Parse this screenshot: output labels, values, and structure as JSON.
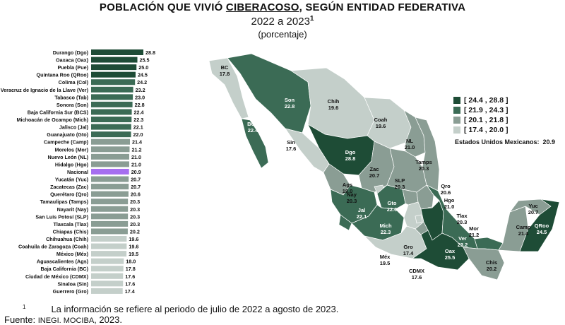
{
  "header": {
    "title_pre": "POBLACIÓN QUE VIVIÓ ",
    "title_underlined": "CIBERACOSO",
    "title_post": ", SEGÚN ENTIDAD FEDERATIVA",
    "subtitle": "2022 a 2023",
    "subtitle_mark": "1",
    "unit": "(porcentaje)"
  },
  "chart_data": {
    "type": "bar",
    "orientation": "horizontal",
    "title": "POBLACIÓN QUE VIVIÓ CIBERACOSO, SEGÚN ENTIDAD FEDERATIVA",
    "categories": [
      "Durango (Dgo)",
      "Oaxaca (Oax)",
      "Puebla (Pue)",
      "Quintana Roo (QRoo)",
      "Colima (Col)",
      "Veracruz de Ignacio de la Llave (Ver)",
      "Tabasco (Tab)",
      "Sonora (Son)",
      "Baja California Sur (BCS)",
      "Michoacán de Ocampo (Mich)",
      "Jalisco (Jal)",
      "Guanajuato (Gto)",
      "Campeche (Camp)",
      "Morelos (Mor)",
      "Nuevo León (NL)",
      "Hidalgo (Hgo)",
      "Nacional",
      "Yucatán (Yuc)",
      "Zacatecas (Zac)",
      "Querétaro (Qro)",
      "Tamaulipas (Tamps)",
      "Nayarit (Nay)",
      "San Luis Potosí (SLP)",
      "Tlaxcala (Tlax)",
      "Chiapas (Chis)",
      "Chihuahua (Chih)",
      "Coahuila de Zaragoza (Coah)",
      "México (Méx)",
      "Aguascalientes (Ags)",
      "Baja California (BC)",
      "Ciudad de México (CDMX)",
      "Sinaloa (Sin)",
      "Guerrero (Gro)"
    ],
    "values": [
      28.8,
      25.5,
      25.0,
      24.5,
      24.2,
      23.2,
      23.0,
      22.8,
      22.4,
      22.3,
      22.1,
      22.0,
      21.4,
      21.2,
      21.0,
      21.0,
      20.9,
      20.7,
      20.7,
      20.6,
      20.3,
      20.3,
      20.3,
      20.3,
      20.2,
      19.6,
      19.6,
      19.5,
      18.0,
      17.8,
      17.6,
      17.6,
      17.4
    ],
    "value_labels": [
      "28.8",
      "25.5",
      "25.0",
      "24.5",
      "24.2",
      "23.2",
      "23.0",
      "22.8",
      "22.4",
      "22.3",
      "22.1",
      "22.0",
      "21.4",
      "21.2",
      "21.0",
      "21.0",
      "20.9",
      "20.7",
      "20.7",
      "20.6",
      "20.3",
      "20.3",
      "20.3",
      "20.3",
      "20.2",
      "19.6",
      "19.6",
      "19.5",
      "18.0",
      "17.8",
      "17.6",
      "17.6",
      "17.4"
    ],
    "xlim": [
      0,
      28.8
    ],
    "colors": {
      "q4": "#1e4c36",
      "q3": "#3b6b55",
      "q2": "#8a9d94",
      "q1": "#c4cfca",
      "national": "#a66ef0"
    },
    "legend": [
      {
        "label": "[ 24.4 , 28.8 ]",
        "color": "#1e4c36"
      },
      {
        "label": "[ 21.9 , 24.3 ]",
        "color": "#3b6b55"
      },
      {
        "label": "[ 20.1 , 21.8 ]",
        "color": "#8a9d94"
      },
      {
        "label": "[ 17.4 , 20.0 ]",
        "color": "#c4cfca"
      }
    ],
    "national_label": "Estados Unidos Mexicanos:",
    "national_value": "20.9",
    "map_labels": [
      {
        "abbr": "BC",
        "value": "17.8"
      },
      {
        "abbr": "BCS",
        "value": "22.4"
      },
      {
        "abbr": "Son",
        "value": "22.8"
      },
      {
        "abbr": "Chih",
        "value": "19.6"
      },
      {
        "abbr": "Coah",
        "value": "19.6"
      },
      {
        "abbr": "NL",
        "value": "21.0"
      },
      {
        "abbr": "Tamps",
        "value": "20.3"
      },
      {
        "abbr": "Sin",
        "value": "17.6"
      },
      {
        "abbr": "Dgo",
        "value": "28.8"
      },
      {
        "abbr": "Zac",
        "value": "20.7"
      },
      {
        "abbr": "SLP",
        "value": "20.3"
      },
      {
        "abbr": "Ags",
        "value": "18.0"
      },
      {
        "abbr": "Nay",
        "value": "20.3"
      },
      {
        "abbr": "Jal",
        "value": "22.1"
      },
      {
        "abbr": "Gto",
        "value": "22.0"
      },
      {
        "abbr": "Qro",
        "value": "20.6"
      },
      {
        "abbr": "Hgo",
        "value": "21.0"
      },
      {
        "abbr": "Tlax",
        "value": "20.3"
      },
      {
        "abbr": "Col",
        "value": "24.2"
      },
      {
        "abbr": "Mich",
        "value": "22.3"
      },
      {
        "abbr": "Méx",
        "value": "19.5"
      },
      {
        "abbr": "Gro",
        "value": "17.4"
      },
      {
        "abbr": "CDMX",
        "value": "17.6"
      },
      {
        "abbr": "Mor",
        "value": "21.2"
      },
      {
        "abbr": "Pue",
        "value": "25.0"
      },
      {
        "abbr": "Ver",
        "value": "23.2"
      },
      {
        "abbr": "Oax",
        "value": "25.5"
      },
      {
        "abbr": "Tab",
        "value": "23.0"
      },
      {
        "abbr": "Chis",
        "value": "20.2"
      },
      {
        "abbr": "Camp",
        "value": "21.4"
      },
      {
        "abbr": "Yuc",
        "value": "20.7"
      },
      {
        "abbr": "QRoo",
        "value": "24.5"
      }
    ]
  },
  "footer": {
    "footnote_mark": "1",
    "footnote": "La información se refiere al periodo de julio de 2022 a agosto de 2023.",
    "source_label": "Fuente: ",
    "source_org": "INEGI. MOCIBA",
    "source_year": ", 2023."
  }
}
